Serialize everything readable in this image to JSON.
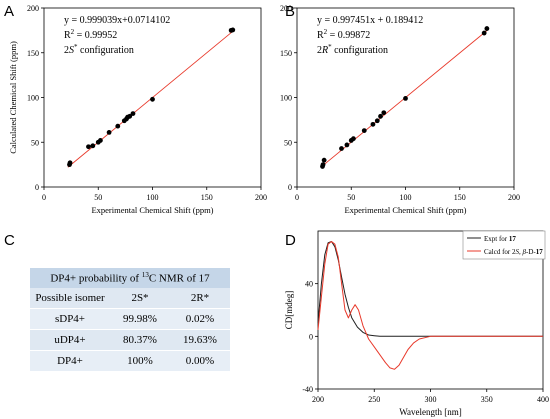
{
  "panels": {
    "a": "A",
    "b": "B",
    "c": "C",
    "d": "D"
  },
  "chart_data": [
    {
      "type": "scatter",
      "panel": "A",
      "equation": "y = 0.999039x+0.0714102",
      "r2_prefix": "R",
      "r2_sup": "2",
      "r2_value": " = 0.99952",
      "config_prefix": "2",
      "config_italic": "S",
      "config_sup": "*",
      "config_suffix": " configuration",
      "xlabel": "Experimental Chemical Shift (ppm)",
      "ylabel": "Calculated Chemical Shift (ppm)",
      "xlim": [
        0,
        200
      ],
      "ylim": [
        0,
        200
      ],
      "xticks": [
        "0",
        "50",
        "100",
        "150",
        "200"
      ],
      "yticks": [
        "0",
        "50",
        "100",
        "150",
        "200"
      ],
      "x": [
        23.5,
        24,
        41,
        45,
        50,
        52,
        60,
        68,
        74,
        76,
        77,
        79,
        82,
        100,
        172.5,
        174
      ],
      "y": [
        25,
        27,
        45,
        46,
        50,
        52,
        61,
        68,
        74,
        76,
        78,
        79,
        82,
        98,
        175,
        175.5
      ],
      "fit": {
        "slope": 0.999039,
        "intercept": 0.0714102,
        "x_range": [
          22,
          175
        ]
      },
      "marker_color": "#000000",
      "line_color": "#e8392b"
    },
    {
      "type": "scatter",
      "panel": "B",
      "equation": "y = 0.997451x + 0.189412",
      "r2_prefix": "R",
      "r2_sup": "2",
      "r2_value": " = 0.99872",
      "config_prefix": "2",
      "config_italic": "R",
      "config_sup": "*",
      "config_suffix": " configuration",
      "xlabel": "Experimental Chemical Shift (ppm)",
      "ylabel": "",
      "xlim": [
        0,
        200
      ],
      "ylim": [
        0,
        200
      ],
      "xticks": [
        "0",
        "50",
        "100",
        "150",
        "200"
      ],
      "yticks": [
        "0",
        "50",
        "100",
        "150",
        "200"
      ],
      "x": [
        23.5,
        24,
        25,
        41,
        46,
        50,
        52,
        62,
        70,
        74,
        77,
        80,
        100,
        172.5,
        175
      ],
      "y": [
        23,
        25,
        30,
        43,
        47,
        52,
        54,
        63,
        70,
        74,
        79,
        83,
        99,
        172,
        177
      ],
      "fit": {
        "slope": 0.997451,
        "intercept": 0.189412,
        "x_range": [
          22,
          175
        ]
      },
      "marker_color": "#000000",
      "line_color": "#e8392b"
    },
    {
      "type": "table",
      "panel": "C",
      "title_prefix": "DP4+ probability of ",
      "title_sup": "13",
      "title_suffix": "C NMR of 17",
      "columns": [
        "Possible isomer",
        "2S*",
        "2R*"
      ],
      "rows": [
        [
          "sDP4+",
          "99.98%",
          "0.02%"
        ],
        [
          "uDP4+",
          "80.37%",
          "19.63%"
        ],
        [
          "DP4+",
          "100%",
          "0.00%"
        ]
      ]
    },
    {
      "type": "line",
      "panel": "D",
      "xlabel": "Wavelength [nm]",
      "ylabel": "CD[mdeg]",
      "xlim": [
        200,
        400
      ],
      "ylim": [
        -40,
        80
      ],
      "xticks": [
        "200",
        "250",
        "300",
        "350",
        "400"
      ],
      "yticks": [
        "-40",
        "0",
        "40"
      ],
      "legend_position": "top-right",
      "series": [
        {
          "name": "Expt for 17",
          "legend_prefix": "Expt for ",
          "legend_bold": "17",
          "color": "#1f1f1f",
          "x": [
            200,
            203,
            206,
            209,
            212,
            215,
            218,
            221,
            224,
            227,
            230,
            235,
            240,
            245,
            250,
            255,
            260,
            270,
            280,
            300,
            350,
            400
          ],
          "y": [
            10,
            40,
            62,
            71,
            72,
            68,
            58,
            45,
            32,
            22,
            14,
            7,
            3,
            1,
            0.5,
            0,
            0,
            0,
            0,
            0,
            0,
            0
          ]
        },
        {
          "name": "Calcd for 2S, β-D-17",
          "legend_prefix": "Calcd for 2",
          "legend_italic": "S",
          "legend_mid": ", ",
          "legend_italic2": "β",
          "legend_tail": "-D-",
          "legend_bold": "17",
          "color": "#e8392b",
          "x": [
            200,
            203,
            206,
            209,
            212,
            215,
            218,
            221,
            224,
            227,
            230,
            233,
            236,
            240,
            245,
            250,
            255,
            260,
            264,
            268,
            272,
            276,
            280,
            285,
            290,
            295,
            300,
            310,
            320,
            350,
            400
          ],
          "y": [
            5,
            30,
            55,
            70,
            72,
            70,
            60,
            40,
            20,
            14,
            20,
            24,
            20,
            8,
            -2,
            -8,
            -14,
            -20,
            -24,
            -25,
            -22,
            -16,
            -10,
            -5,
            -2,
            -1,
            0,
            0,
            0,
            0,
            0
          ]
        }
      ]
    }
  ]
}
